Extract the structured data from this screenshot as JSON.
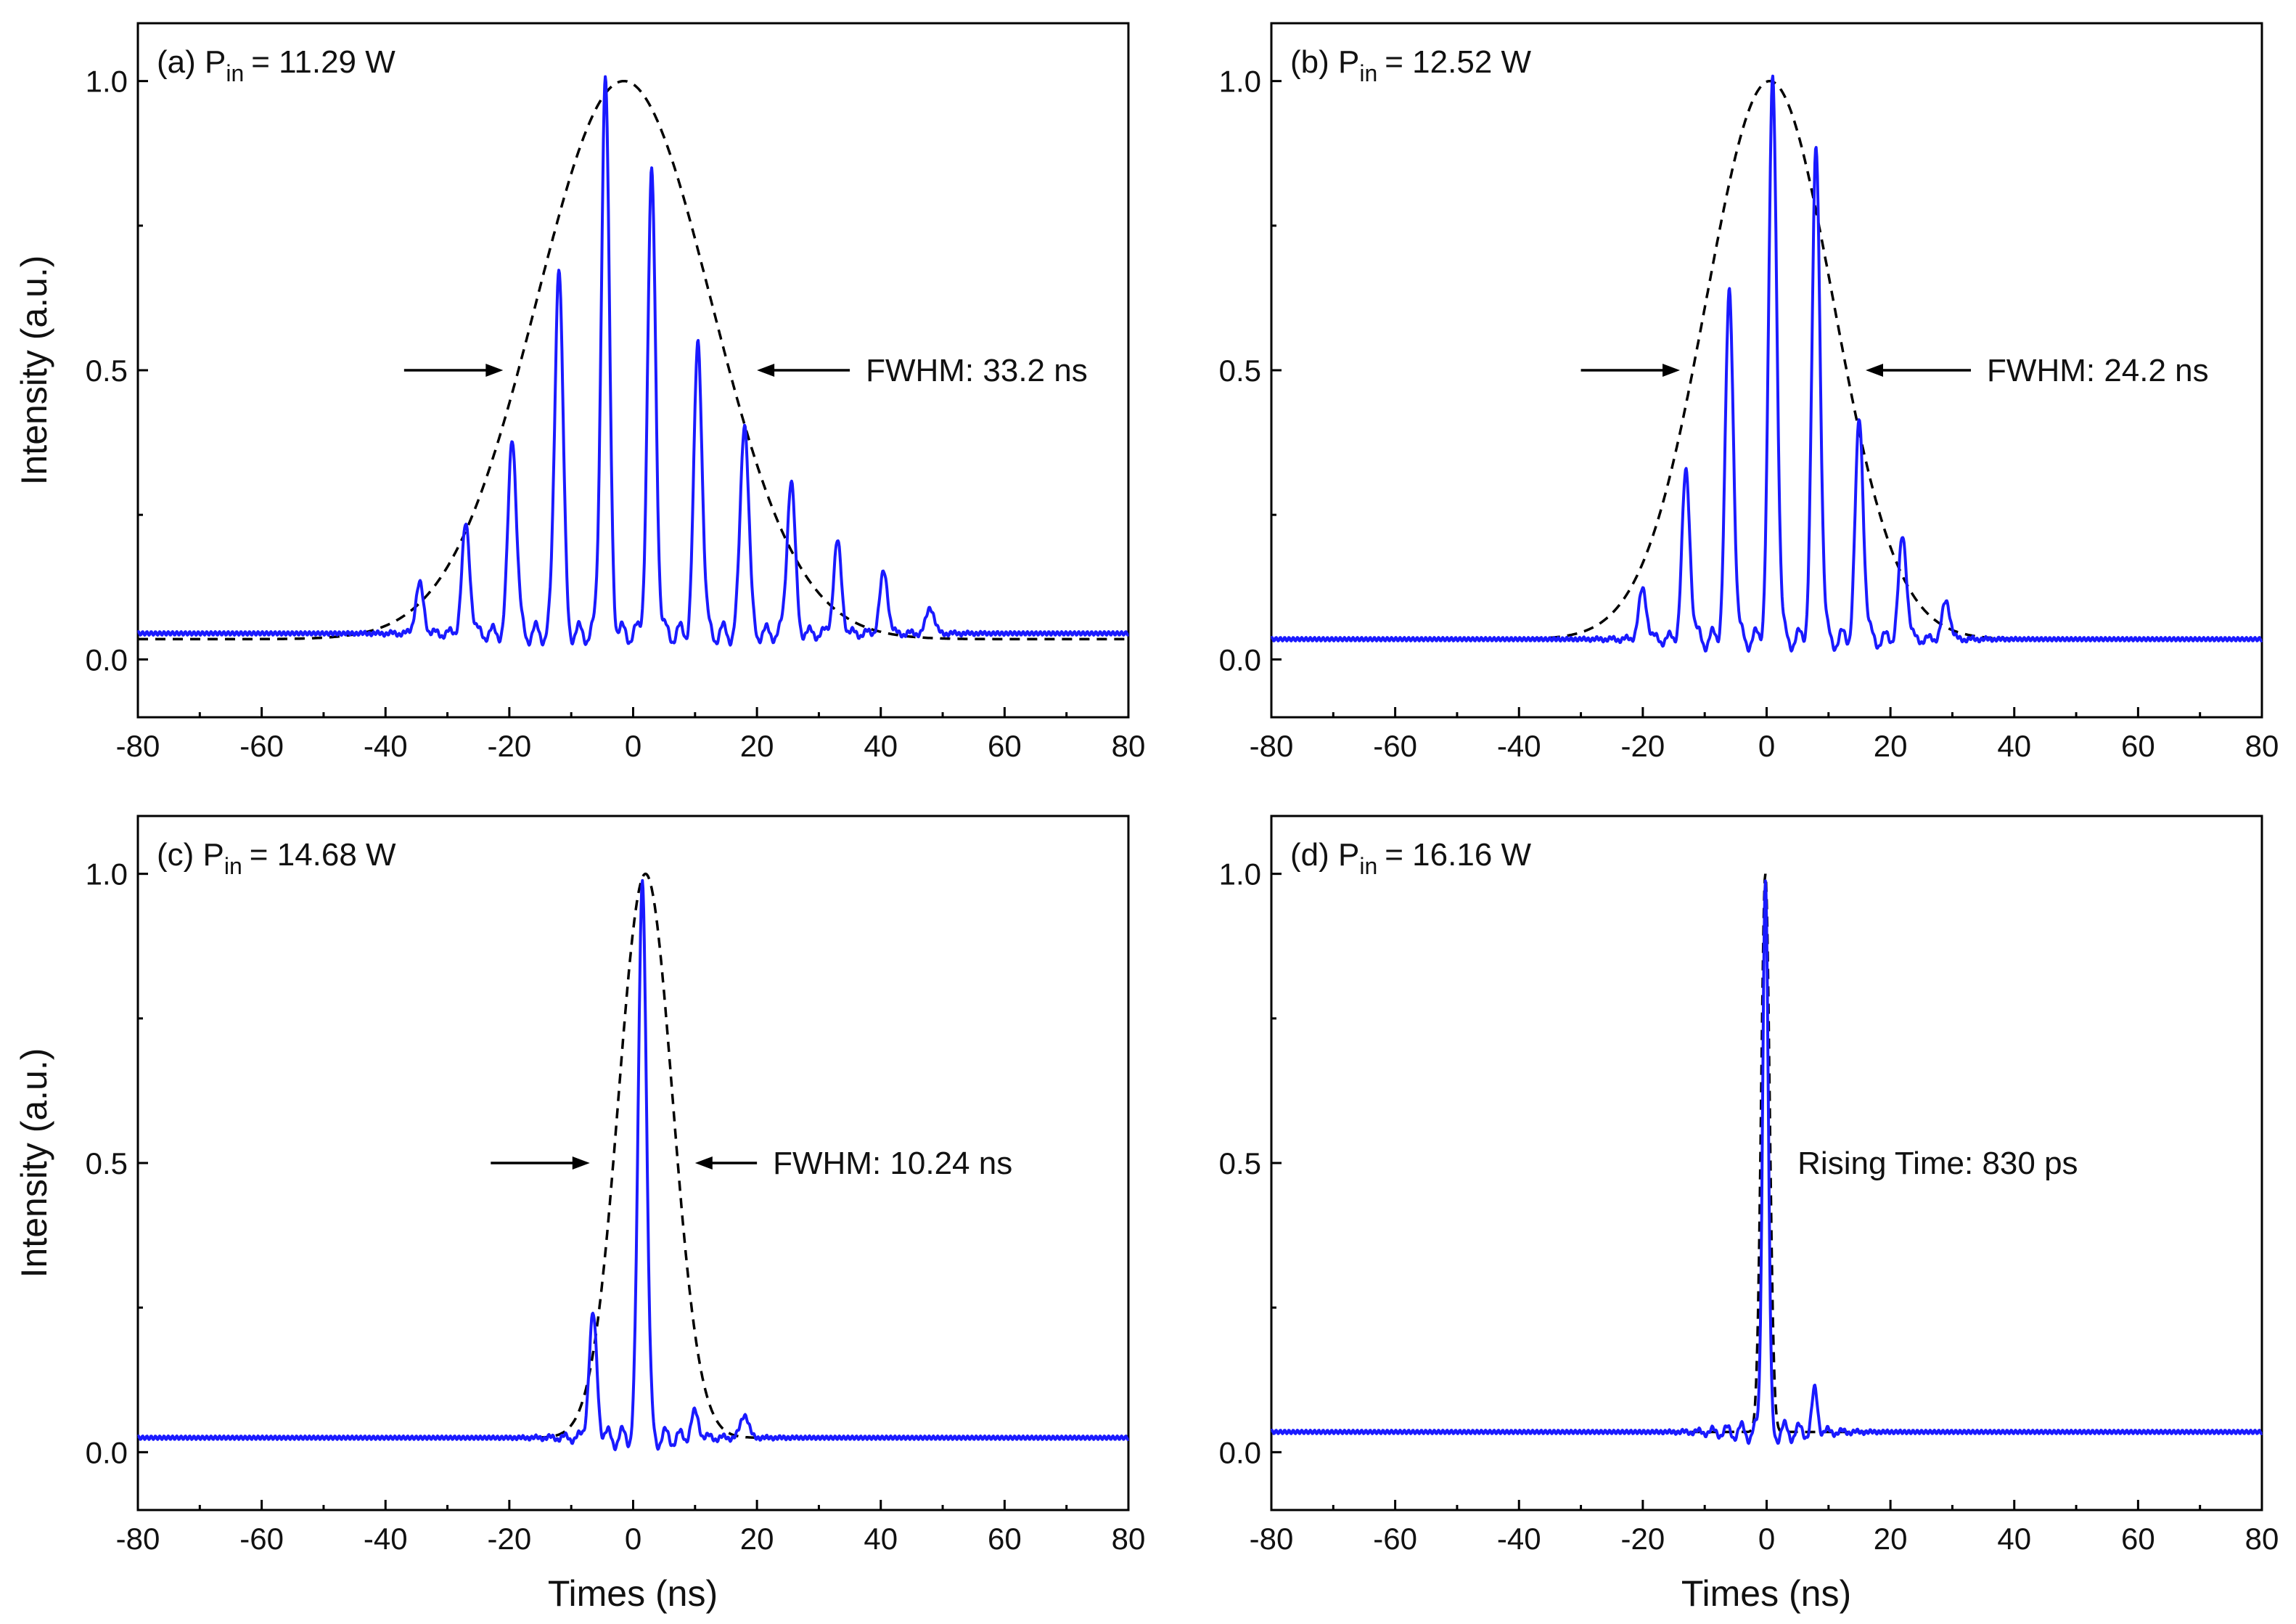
{
  "figure": {
    "xlabel": "Times (ns)",
    "ylabel": "Intensity (a.u.)"
  },
  "chart_data": [
    {
      "type": "line",
      "panel": "a",
      "label_prefix": "(a) P",
      "label_sub": "in",
      "label_value": "= 11.29 W",
      "xlim": [
        -80,
        80
      ],
      "ylim": [
        -0.1,
        1.1
      ],
      "xticks": [
        -80,
        -60,
        -40,
        -20,
        0,
        20,
        40,
        60,
        80
      ],
      "yticks": [
        0.0,
        0.5,
        1.0
      ],
      "ytick_labels": [
        "0.0",
        "0.5",
        "1.0"
      ],
      "baseline": 0.045,
      "fit_baseline": 0.035,
      "peaks": [
        {
          "t": -34.5,
          "h": 0.13
        },
        {
          "t": -27,
          "h": 0.23
        },
        {
          "t": -19.5,
          "h": 0.39
        },
        {
          "t": -12,
          "h": 0.69
        },
        {
          "t": -4.5,
          "h": 1.0
        },
        {
          "t": 3,
          "h": 0.83
        },
        {
          "t": 10.5,
          "h": 0.55
        },
        {
          "t": 18,
          "h": 0.42
        },
        {
          "t": 25.5,
          "h": 0.31
        },
        {
          "t": 33,
          "h": 0.2
        },
        {
          "t": 40.5,
          "h": 0.15
        },
        {
          "t": 48,
          "h": 0.09
        }
      ],
      "fit": {
        "center": -1.5,
        "fwhm": 33.2,
        "amplitude": 1.0
      },
      "fwhm_text": "FWHM: 33.2 ns",
      "arrows": {
        "left": [
          -37,
          -21
        ],
        "right": [
          35,
          20
        ],
        "y": 0.5
      }
    },
    {
      "type": "line",
      "panel": "b",
      "label_prefix": "(b) P",
      "label_sub": "in",
      "label_value": "= 12.52 W",
      "xlim": [
        -80,
        80
      ],
      "ylim": [
        -0.1,
        1.1
      ],
      "xticks": [
        -80,
        -60,
        -40,
        -20,
        0,
        20,
        40,
        60,
        80
      ],
      "yticks": [
        0.0,
        0.5,
        1.0
      ],
      "ytick_labels": [
        "0.0",
        "0.5",
        "1.0"
      ],
      "baseline": 0.035,
      "fit_baseline": 0.035,
      "peaks": [
        {
          "t": -20,
          "h": 0.12
        },
        {
          "t": -13,
          "h": 0.32
        },
        {
          "t": -6,
          "h": 0.63
        },
        {
          "t": 1,
          "h": 1.0
        },
        {
          "t": 8,
          "h": 0.88
        },
        {
          "t": 15,
          "h": 0.41
        },
        {
          "t": 22,
          "h": 0.21
        },
        {
          "t": 29,
          "h": 0.1
        }
      ],
      "fit": {
        "center": 0.5,
        "fwhm": 24.2,
        "amplitude": 1.0
      },
      "fwhm_text": "FWHM: 24.2 ns",
      "arrows": {
        "left": [
          -30,
          -14
        ],
        "right": [
          33,
          16
        ],
        "y": 0.5
      }
    },
    {
      "type": "line",
      "panel": "c",
      "label_prefix": "(c) P",
      "label_sub": "in",
      "label_value": "= 14.68 W",
      "xlim": [
        -80,
        80
      ],
      "ylim": [
        -0.1,
        1.1
      ],
      "xticks": [
        -80,
        -60,
        -40,
        -20,
        0,
        20,
        40,
        60,
        80
      ],
      "yticks": [
        0.0,
        0.5,
        1.0
      ],
      "ytick_labels": [
        "0.0",
        "0.5",
        "1.0"
      ],
      "baseline": 0.025,
      "fit_baseline": 0.025,
      "peaks": [
        {
          "t": -6.5,
          "h": 0.23
        },
        {
          "t": 1.5,
          "h": 1.0
        },
        {
          "t": 10,
          "h": 0.065
        },
        {
          "t": 18,
          "h": 0.065
        }
      ],
      "fit": {
        "center": 2,
        "fwhm": 10.24,
        "amplitude": 1.0
      },
      "fwhm_text": "FWHM: 10.24 ns",
      "arrows": {
        "left": [
          -23,
          -7
        ],
        "right": [
          20,
          10
        ],
        "y": 0.5
      }
    },
    {
      "type": "line",
      "panel": "d",
      "label_prefix": "(d) P",
      "label_sub": "in",
      "label_value": "= 16.16 W",
      "xlim": [
        -80,
        80
      ],
      "ylim": [
        -0.1,
        1.1
      ],
      "xticks": [
        -80,
        -60,
        -40,
        -20,
        0,
        20,
        40,
        60,
        80
      ],
      "yticks": [
        0.0,
        0.5,
        1.0
      ],
      "ytick_labels": [
        "0.0",
        "0.5",
        "1.0"
      ],
      "baseline": 0.035,
      "fit_baseline": 0.035,
      "peaks": [
        {
          "t": -0.2,
          "h": 1.0
        },
        {
          "t": 7.8,
          "h": 0.105
        }
      ],
      "fit": {
        "center": -0.2,
        "fwhm": 1.6,
        "amplitude": 1.0
      },
      "rising_text": "Rising Time: 830 ps"
    }
  ]
}
